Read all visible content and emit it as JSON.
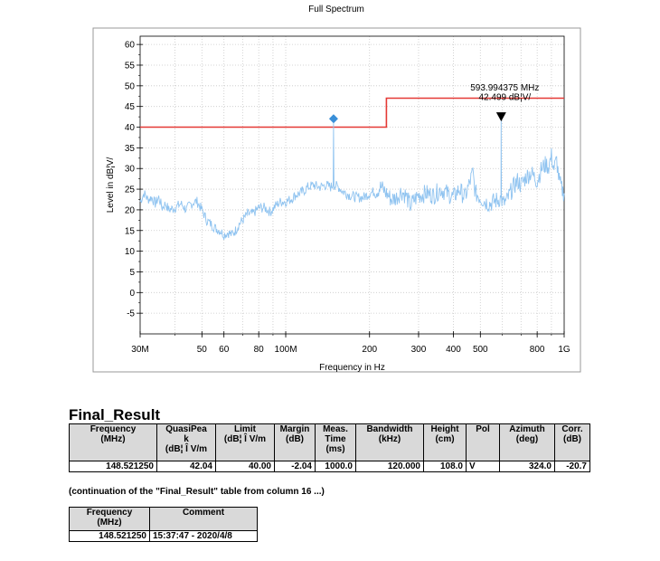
{
  "chart_data": {
    "type": "line",
    "title": "Full Spectrum",
    "xlabel": "Frequency in Hz",
    "ylabel": "Level in dB¦V/",
    "x_scale": "log",
    "xlim": [
      30,
      1000
    ],
    "ylim": [
      -10,
      62
    ],
    "yticks": [
      -5,
      0,
      5,
      10,
      15,
      20,
      25,
      30,
      35,
      40,
      45,
      50,
      55,
      60
    ],
    "ytick_labels": [
      "-5",
      "0",
      "5",
      "10",
      "15",
      "20",
      "25",
      "30",
      "35",
      "40",
      "45",
      "50",
      "55",
      "60"
    ],
    "xticks": [
      30,
      50,
      60,
      80,
      100,
      200,
      300,
      400,
      500,
      800,
      1000
    ],
    "xtick_labels": [
      "30M",
      "50",
      "60",
      "80",
      "100M",
      "200",
      "300",
      "400",
      "500",
      "800",
      "1G"
    ],
    "colors": {
      "limit": "#e53935",
      "spectrum": "#8fc3f0",
      "peak_marker": "#3a8fd8",
      "marker": "#000000",
      "grid": "#c8c8c8",
      "frame": "#000000",
      "panel_border": "#999999"
    },
    "series": [
      {
        "name": "Limit",
        "type": "step",
        "points": [
          [
            30,
            40
          ],
          [
            230,
            40
          ],
          [
            230,
            47
          ],
          [
            1000,
            47
          ]
        ]
      },
      {
        "name": "Spectrum",
        "type": "line",
        "points": [
          [
            30,
            22
          ],
          [
            31,
            24
          ],
          [
            32,
            22.5
          ],
          [
            33,
            23
          ],
          [
            34,
            21.5
          ],
          [
            35,
            23
          ],
          [
            36,
            20.5
          ],
          [
            37,
            21.5
          ],
          [
            38,
            20
          ],
          [
            40,
            20.5
          ],
          [
            42,
            21.5
          ],
          [
            44,
            20
          ],
          [
            45,
            21
          ],
          [
            47,
            22
          ],
          [
            48,
            22
          ],
          [
            49,
            21
          ],
          [
            50,
            20
          ],
          [
            52,
            17.5
          ],
          [
            54,
            16.5
          ],
          [
            56,
            15.5
          ],
          [
            58,
            15
          ],
          [
            60,
            14
          ],
          [
            62,
            14.5
          ],
          [
            64,
            14
          ],
          [
            66,
            15
          ],
          [
            68,
            16.5
          ],
          [
            70,
            17.5
          ],
          [
            73,
            19
          ],
          [
            76,
            19
          ],
          [
            80,
            20.5
          ],
          [
            84,
            20.5
          ],
          [
            88,
            19.5
          ],
          [
            92,
            21
          ],
          [
            96,
            22
          ],
          [
            100,
            22
          ],
          [
            104,
            22.5
          ],
          [
            108,
            23.5
          ],
          [
            112,
            24
          ],
          [
            116,
            24.5
          ],
          [
            120,
            25.5
          ],
          [
            126,
            26
          ],
          [
            132,
            25.5
          ],
          [
            140,
            26
          ],
          [
            145,
            25.5
          ],
          [
            148,
            26
          ],
          [
            148.5,
            41
          ],
          [
            149,
            26
          ],
          [
            155,
            25.5
          ],
          [
            160,
            24.5
          ],
          [
            170,
            23.5
          ],
          [
            180,
            23
          ],
          [
            190,
            23
          ],
          [
            200,
            24
          ],
          [
            210,
            24.5
          ],
          [
            220,
            25.5
          ],
          [
            230,
            24
          ],
          [
            240,
            22.5
          ],
          [
            250,
            23
          ],
          [
            260,
            24.5
          ],
          [
            270,
            23.5
          ],
          [
            280,
            21
          ],
          [
            290,
            22.5
          ],
          [
            300,
            23.5
          ],
          [
            320,
            24
          ],
          [
            340,
            23.5
          ],
          [
            360,
            25
          ],
          [
            380,
            24
          ],
          [
            400,
            23
          ],
          [
            420,
            25
          ],
          [
            440,
            23
          ],
          [
            460,
            27
          ],
          [
            470,
            29
          ],
          [
            480,
            24
          ],
          [
            500,
            23
          ],
          [
            520,
            22
          ],
          [
            540,
            21.5
          ],
          [
            560,
            22
          ],
          [
            580,
            22.5
          ],
          [
            593,
            23
          ],
          [
            594,
            42.5
          ],
          [
            595,
            23
          ],
          [
            600,
            21.5
          ],
          [
            620,
            22
          ],
          [
            650,
            25
          ],
          [
            680,
            27
          ],
          [
            700,
            26
          ],
          [
            730,
            28
          ],
          [
            760,
            29
          ],
          [
            780,
            28
          ],
          [
            800,
            27
          ],
          [
            830,
            30
          ],
          [
            860,
            31
          ],
          [
            880,
            30.5
          ],
          [
            900,
            33
          ],
          [
            920,
            30
          ],
          [
            940,
            32
          ],
          [
            960,
            27
          ],
          [
            980,
            25
          ],
          [
            1000,
            24
          ]
        ]
      }
    ],
    "markers": [
      {
        "name": "QuasiPeak result",
        "shape": "diamond",
        "x": 148.52125,
        "y": 42.04
      },
      {
        "name": "Marker",
        "shape": "triangle-down",
        "x": 593.994375,
        "y": 42.499
      }
    ],
    "annotations": [
      {
        "text": "593.994375 MHz",
        "x": 593.994375,
        "y": 49.5
      },
      {
        "text": "42.499 dB¦V/",
        "x": 593.994375,
        "y": 47.2
      }
    ]
  },
  "final_result": {
    "title": "Final_Result",
    "headers": {
      "frequency": [
        "Frequency",
        "(MHz)"
      ],
      "quasipeak": [
        "QuasiPea",
        "k",
        "(dB¦ Î V/m"
      ],
      "limit": [
        "Limit",
        "(dB¦ Î V/m"
      ],
      "margin": [
        "Margin",
        "(dB)"
      ],
      "meas_time": [
        "Meas.",
        "Time",
        "(ms)"
      ],
      "bandwidth": [
        "Bandwidth",
        "(kHz)"
      ],
      "height": [
        "Height",
        "(cm)"
      ],
      "pol": [
        "Pol"
      ],
      "azimuth": [
        "Azimuth",
        "(deg)"
      ],
      "corr": [
        "Corr.",
        "(dB)"
      ]
    },
    "row": {
      "frequency": "148.521250",
      "quasipeak": "42.04",
      "limit": "40.00",
      "margin": "-2.04",
      "meas_time": "1000.0",
      "bandwidth": "120.000",
      "height": "108.0",
      "pol": "V",
      "azimuth": "324.0",
      "corr": "-20.7"
    }
  },
  "continuation_note": "(continuation of the \"Final_Result\" table from column  16 ...)",
  "comment_table": {
    "headers": {
      "frequency": [
        "Frequency",
        "(MHz)"
      ],
      "comment": [
        "Comment"
      ]
    },
    "row": {
      "frequency": "148.521250",
      "comment": "15:37:47 - 2020/4/8"
    }
  }
}
